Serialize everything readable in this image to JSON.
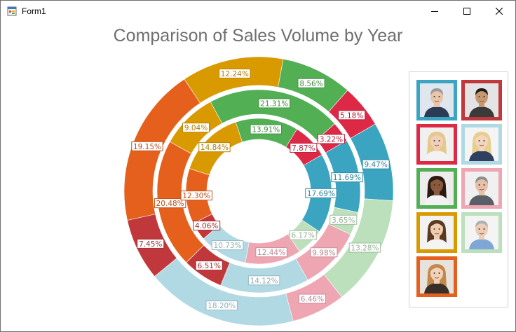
{
  "window": {
    "title": "Form1",
    "app_icon": "form-app-icon",
    "controls": [
      "minimize-icon",
      "maximize-icon",
      "close-icon"
    ]
  },
  "chart_data": {
    "type": "donut",
    "title": "Comparison of Sales Volume by Year",
    "rings": [
      {
        "ring": "outer",
        "slices": [
          {
            "label": "9.47%",
            "value": 9.47,
            "color": "#3aa4c1"
          },
          {
            "label": "13.28%",
            "value": 13.28,
            "color": "#bcdfbc"
          },
          {
            "label": "6.46%",
            "value": 6.46,
            "color": "#eea6b3"
          },
          {
            "label": "18.20%",
            "value": 18.2,
            "color": "#b0d9e4"
          },
          {
            "label": "7.45%",
            "value": 7.45,
            "color": "#c0383c"
          },
          {
            "label": "19.15%",
            "value": 19.15,
            "color": "#e4601c"
          },
          {
            "label": "12.24%",
            "value": 12.24,
            "color": "#d99a00"
          },
          {
            "label": "8.56%",
            "value": 8.56,
            "color": "#52af53"
          },
          {
            "label": "5.18%",
            "value": 5.18,
            "color": "#dd2846"
          }
        ]
      },
      {
        "ring": "middle",
        "slices": [
          {
            "label": "11.69%",
            "value": 11.69,
            "color": "#3aa4c1"
          },
          {
            "label": "3.65%",
            "value": 3.65,
            "color": "#bcdfbc"
          },
          {
            "label": "9.98%",
            "value": 9.98,
            "color": "#eea6b3"
          },
          {
            "label": "14.12%",
            "value": 14.12,
            "color": "#b0d9e4"
          },
          {
            "label": "6.51%",
            "value": 6.51,
            "color": "#c0383c"
          },
          {
            "label": "20.48%",
            "value": 20.48,
            "color": "#e4601c"
          },
          {
            "label": "9.04%",
            "value": 9.04,
            "color": "#d99a00"
          },
          {
            "label": "21.31%",
            "value": 21.31,
            "color": "#52af53"
          },
          {
            "label": "3.22%",
            "value": 3.22,
            "color": "#dd2846"
          }
        ]
      },
      {
        "ring": "inner",
        "slices": [
          {
            "label": "17.69%",
            "value": 17.69,
            "color": "#3aa4c1"
          },
          {
            "label": "6.17%",
            "value": 6.17,
            "color": "#bcdfbc"
          },
          {
            "label": "12.44%",
            "value": 12.44,
            "color": "#eea6b3"
          },
          {
            "label": "10.73%",
            "value": 10.73,
            "color": "#b0d9e4"
          },
          {
            "label": "4.06%",
            "value": 4.06,
            "color": "#c0383c"
          },
          {
            "label": "12.30%",
            "value": 12.3,
            "color": "#e4601c"
          },
          {
            "label": "14.84%",
            "value": 14.84,
            "color": "#d99a00"
          },
          {
            "label": "13.91%",
            "value": 13.91,
            "color": "#52af53"
          },
          {
            "label": "7.87%",
            "value": 7.87,
            "color": "#dd2846"
          }
        ]
      }
    ],
    "legend": {
      "placement": "right",
      "style": "employee photos with colored frames",
      "items": [
        {
          "color": "#3aa4c1",
          "icon": "man-gray-hair-photo"
        },
        {
          "color": "#c0383c",
          "icon": "man-dark-hair-photo"
        },
        {
          "color": "#dd2846",
          "icon": "woman-blonde-glasses-photo"
        },
        {
          "color": "#b0d9e4",
          "icon": "woman-blonde-photo"
        },
        {
          "color": "#52af53",
          "icon": "woman-dark-hair-photo"
        },
        {
          "color": "#eea6b3",
          "icon": "man-gray-hair-tie-photo"
        },
        {
          "color": "#d99a00",
          "icon": "woman-brown-hair-photo"
        },
        {
          "color": "#bcdfbc",
          "icon": "man-glasses-photo"
        },
        {
          "color": "#e4601c",
          "icon": "woman-long-hair-photo"
        }
      ]
    }
  }
}
